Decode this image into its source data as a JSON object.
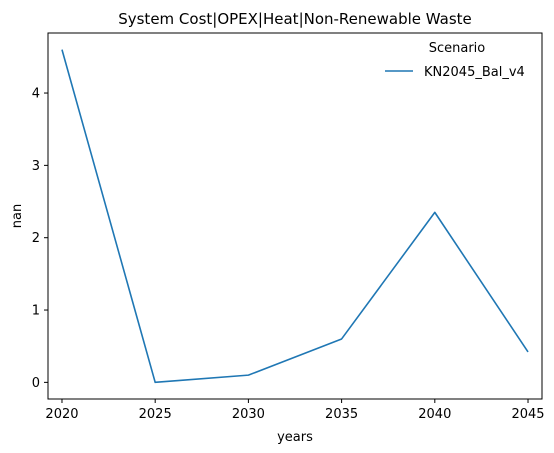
{
  "chart_data": {
    "type": "line",
    "title": "System Cost|OPEX|Heat|Non-Renewable Waste",
    "xlabel": "years",
    "ylabel": "nan",
    "x": [
      2020,
      2025,
      2030,
      2035,
      2040,
      2045
    ],
    "series": [
      {
        "name": "KN2045_Bal_v4",
        "values": [
          4.6,
          0.0,
          0.1,
          0.6,
          2.35,
          0.42
        ],
        "color": "#1f77b4"
      }
    ],
    "xticks": [
      "2020",
      "2025",
      "2030",
      "2035",
      "2040",
      "2045"
    ],
    "yticks": [
      "0",
      "1",
      "2",
      "3",
      "4"
    ],
    "xlim": [
      2019.25,
      2045.75
    ],
    "ylim": [
      -0.23,
      4.83
    ],
    "grid": false,
    "legend": {
      "title": "Scenario",
      "placement": "top-right"
    }
  }
}
